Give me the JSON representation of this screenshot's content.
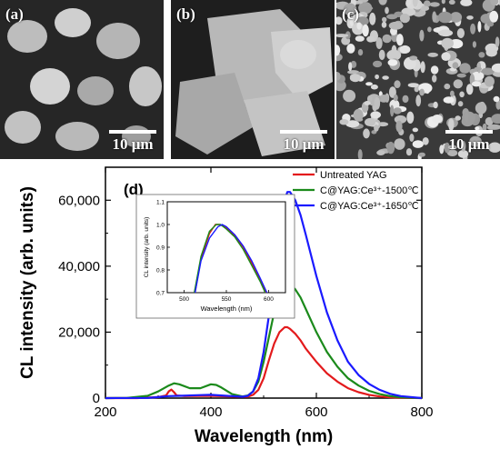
{
  "micrographs": [
    {
      "label": "(a)",
      "scale_text": "10 μm",
      "tone": "#5a5a5a"
    },
    {
      "label": "(b)",
      "scale_text": "10 μm",
      "tone": "#3a3a3a"
    },
    {
      "label": "(c)",
      "scale_text": "10 μm",
      "tone": "#6e6e6e"
    }
  ],
  "chart_data": {
    "type": "line",
    "panel_label": "(d)",
    "xlabel": "Wavelength (nm)",
    "ylabel": "CL intensity (arb. units)",
    "xlim": [
      200,
      800
    ],
    "ylim": [
      0,
      70000
    ],
    "xticks": [
      200,
      400,
      600,
      800
    ],
    "xtick_labels": [
      "200",
      "400",
      "600",
      "800"
    ],
    "yticks": [
      0,
      20000,
      40000,
      60000
    ],
    "ytick_labels": [
      "0",
      "20,000",
      "40,000",
      "60,000"
    ],
    "legend_position": "top-right",
    "series": [
      {
        "name": "Untreated YAG",
        "color": "#e31a1c",
        "x": [
          200,
          260,
          300,
          315,
          320,
          325,
          330,
          335,
          350,
          400,
          450,
          470,
          480,
          490,
          500,
          510,
          520,
          530,
          540,
          545,
          550,
          560,
          570,
          580,
          600,
          620,
          640,
          660,
          680,
          700,
          720,
          740,
          760,
          800
        ],
        "y": [
          0,
          0,
          300,
          800,
          2000,
          2600,
          1800,
          800,
          600,
          700,
          400,
          400,
          1000,
          2500,
          6000,
          11500,
          16500,
          20000,
          21500,
          21500,
          21000,
          19500,
          17500,
          15000,
          11000,
          7500,
          5000,
          3000,
          1800,
          1000,
          500,
          250,
          100,
          0
        ]
      },
      {
        "name": "C@YAG:Ce³⁺-1500℃",
        "color": "#1b8a1b",
        "x": [
          200,
          240,
          280,
          300,
          320,
          330,
          340,
          360,
          380,
          400,
          410,
          420,
          440,
          460,
          470,
          480,
          490,
          500,
          510,
          520,
          530,
          540,
          550,
          560,
          570,
          580,
          600,
          620,
          640,
          660,
          680,
          700,
          720,
          740,
          760,
          800
        ],
        "y": [
          0,
          50,
          700,
          2000,
          3800,
          4500,
          4200,
          3000,
          3000,
          4200,
          4000,
          3200,
          1200,
          500,
          800,
          2000,
          5000,
          11000,
          18500,
          26000,
          31500,
          34500,
          34500,
          33000,
          30500,
          27000,
          20000,
          14000,
          9500,
          6000,
          3800,
          2200,
          1200,
          600,
          250,
          0
        ]
      },
      {
        "name": "C@YAG:Ce³⁺-1650℃",
        "color": "#1a1aff",
        "x": [
          200,
          280,
          300,
          320,
          340,
          380,
          400,
          430,
          460,
          470,
          480,
          490,
          500,
          510,
          520,
          530,
          540,
          545,
          550,
          560,
          570,
          580,
          600,
          620,
          640,
          660,
          680,
          700,
          720,
          740,
          760,
          800
        ],
        "y": [
          0,
          50,
          300,
          600,
          700,
          900,
          1000,
          700,
          400,
          700,
          2000,
          6000,
          14000,
          25000,
          38000,
          51000,
          60000,
          62500,
          62500,
          60000,
          55500,
          49500,
          37000,
          26000,
          17500,
          11000,
          7000,
          4300,
          2500,
          1300,
          600,
          0
        ]
      }
    ],
    "inset": {
      "xlabel": "Wavelength (nm)",
      "ylabel": "CL intensity (arb. units)",
      "xlim": [
        480,
        620
      ],
      "ylim": [
        0.7,
        1.1
      ],
      "xticks": [
        500,
        550,
        600
      ],
      "xtick_labels": [
        "500",
        "550",
        "600"
      ],
      "yticks": [
        0.7,
        0.8,
        0.9,
        1.0,
        1.1
      ],
      "ytick_labels": [
        "0.7",
        "0.8",
        "0.9",
        "1.0",
        "1.1"
      ],
      "series": [
        {
          "color": "#e31a1c",
          "x": [
            513,
            520,
            530,
            537,
            542,
            550,
            560,
            570,
            580,
            590,
            597
          ],
          "y": [
            0.7,
            0.85,
            0.96,
            1.0,
            1.0,
            0.985,
            0.95,
            0.9,
            0.83,
            0.76,
            0.7
          ]
        },
        {
          "color": "#1b8a1b",
          "x": [
            512,
            520,
            530,
            538,
            543,
            550,
            560,
            570,
            580,
            590,
            596
          ],
          "y": [
            0.7,
            0.86,
            0.97,
            1.0,
            1.0,
            0.98,
            0.945,
            0.89,
            0.82,
            0.75,
            0.7
          ]
        },
        {
          "color": "#1a1aff",
          "x": [
            513,
            520,
            530,
            540,
            545,
            550,
            560,
            570,
            580,
            590,
            598
          ],
          "y": [
            0.7,
            0.84,
            0.94,
            0.99,
            1.0,
            0.99,
            0.955,
            0.905,
            0.84,
            0.765,
            0.7
          ]
        }
      ]
    }
  }
}
